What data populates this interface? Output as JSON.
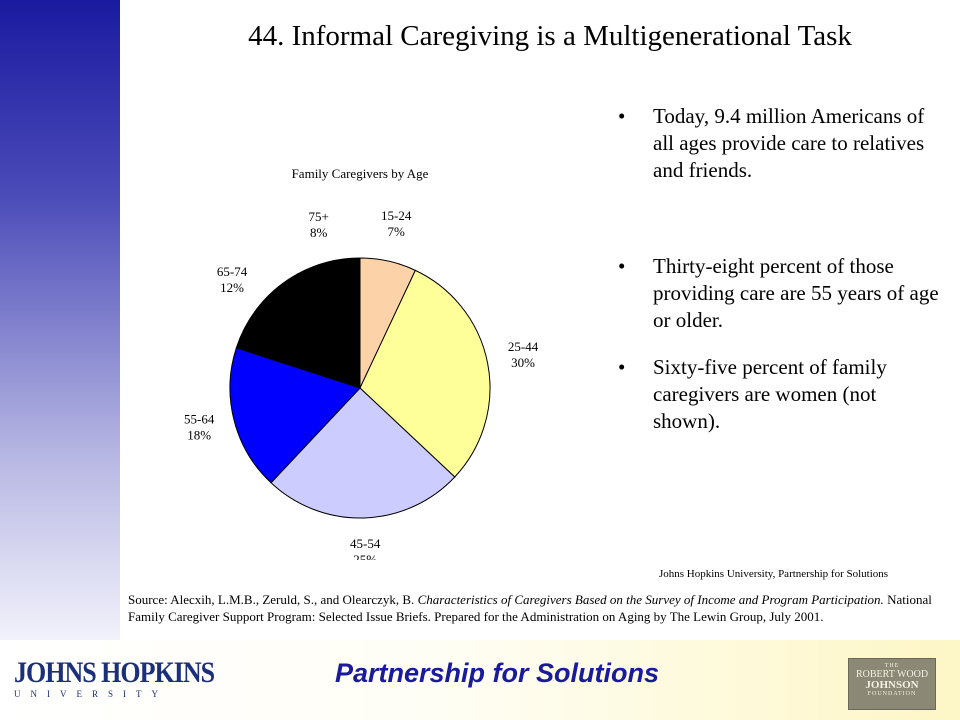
{
  "slide": {
    "title": "44. Informal Caregiving is a Multigenerational Task",
    "bullets": [
      {
        "symbol": "•",
        "text": "Today, 9.4 million Americans of all ages provide care to relatives and friends."
      },
      {
        "symbol": "•",
        "text": "Thirty-eight percent of those providing care are 55 years of age or older."
      },
      {
        "symbol": "•",
        "text": "Sixty-five percent of family caregivers are women (not shown)."
      }
    ],
    "attribution": "Johns Hopkins University, Partnership for Solutions",
    "source": {
      "part1": "Source: Alecxih, L.M.B., Zeruld, S., and Olearczyk, B. ",
      "italic": "Characteristics of Caregivers Based on the Survey of Income and Program Participation.",
      "part2": " National Family Caregiver Support Program: Selected Issue Briefs. Prepared for the Administration on Aging by The Lewin Group, July 2001."
    }
  },
  "footer": {
    "jh_logo_name": "JOHNS HOPKINS",
    "jh_logo_sub": "UNIVERSITY",
    "tagline": "Partnership for Solutions",
    "rwj_logo": {
      "line1": "THE",
      "line2": "ROBERT WOOD",
      "line3": "JOHNSON",
      "line4": "FOUNDATION"
    }
  },
  "colors": {
    "sidebar_top": "#1a1aa0",
    "tagline": "#1a1a9c",
    "jh_blue": "#1c2f7a"
  },
  "chart_data": {
    "type": "pie",
    "title": "Family Caregivers by Age",
    "start_angle_deg": 0,
    "direction": "clockwise",
    "slices": [
      {
        "label": "15-24",
        "value": 7,
        "display": "7%",
        "color": "#fcd2a8"
      },
      {
        "label": "25-44",
        "value": 30,
        "display": "30%",
        "color": "#ffff99"
      },
      {
        "label": "45-54",
        "value": 25,
        "display": "25%",
        "color": "#ccccff"
      },
      {
        "label": "55-64",
        "value": 18,
        "display": "18%",
        "color": "#0000ff"
      },
      {
        "label": "65-74",
        "value": 12,
        "display": "12%",
        "color": "#000000"
      },
      {
        "label": "75+",
        "value": 8,
        "display": "8%",
        "color": "#000000"
      }
    ]
  }
}
